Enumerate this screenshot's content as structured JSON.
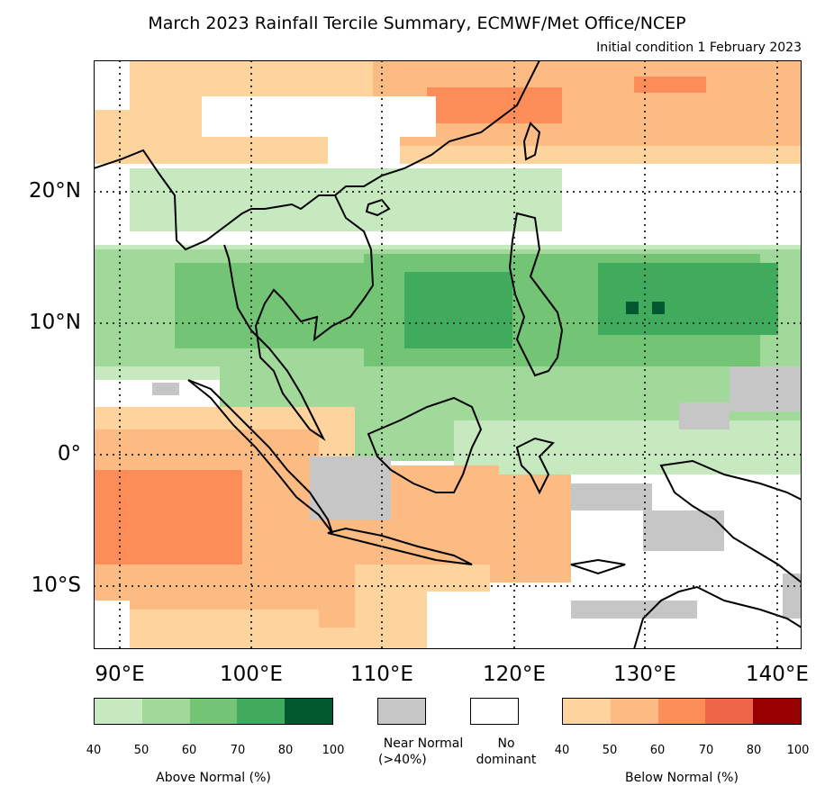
{
  "title": "March 2023 Rainfall Tercile Summary, ECMWF/Met Office/NCEP",
  "subtitle": "Initial condition 1 February 2023",
  "lat_labels": [
    "20°N",
    "10°N",
    "0°",
    "10°S"
  ],
  "lon_labels": [
    "90°E",
    "100°E",
    "110°E",
    "120°E",
    "130°E",
    "140°E"
  ],
  "map_extent": {
    "lon": [
      88,
      141
    ],
    "lat": [
      -15,
      30
    ]
  },
  "colors": {
    "above": [
      "#c7e9c0",
      "#a1d99b",
      "#74c476",
      "#41ab5d",
      "#00592e"
    ],
    "below": [
      "#fdd49e",
      "#fdbb84",
      "#fc8d59",
      "#ef6548",
      "#990000"
    ],
    "near_normal": "#c6c6c6",
    "no_dominant": "#ffffff"
  },
  "legend": {
    "above_ticks": [
      "40",
      "50",
      "60",
      "70",
      "80",
      "100"
    ],
    "above_label": "Above Normal (%)",
    "near_normal_label_1": "Near Normal",
    "near_normal_label_2": "(>40%)",
    "no_dominant_label_1": "No",
    "no_dominant_label_2": "dominant",
    "below_ticks": [
      "40",
      "50",
      "60",
      "70",
      "80",
      "100"
    ],
    "below_label": "Below Normal (%)"
  }
}
